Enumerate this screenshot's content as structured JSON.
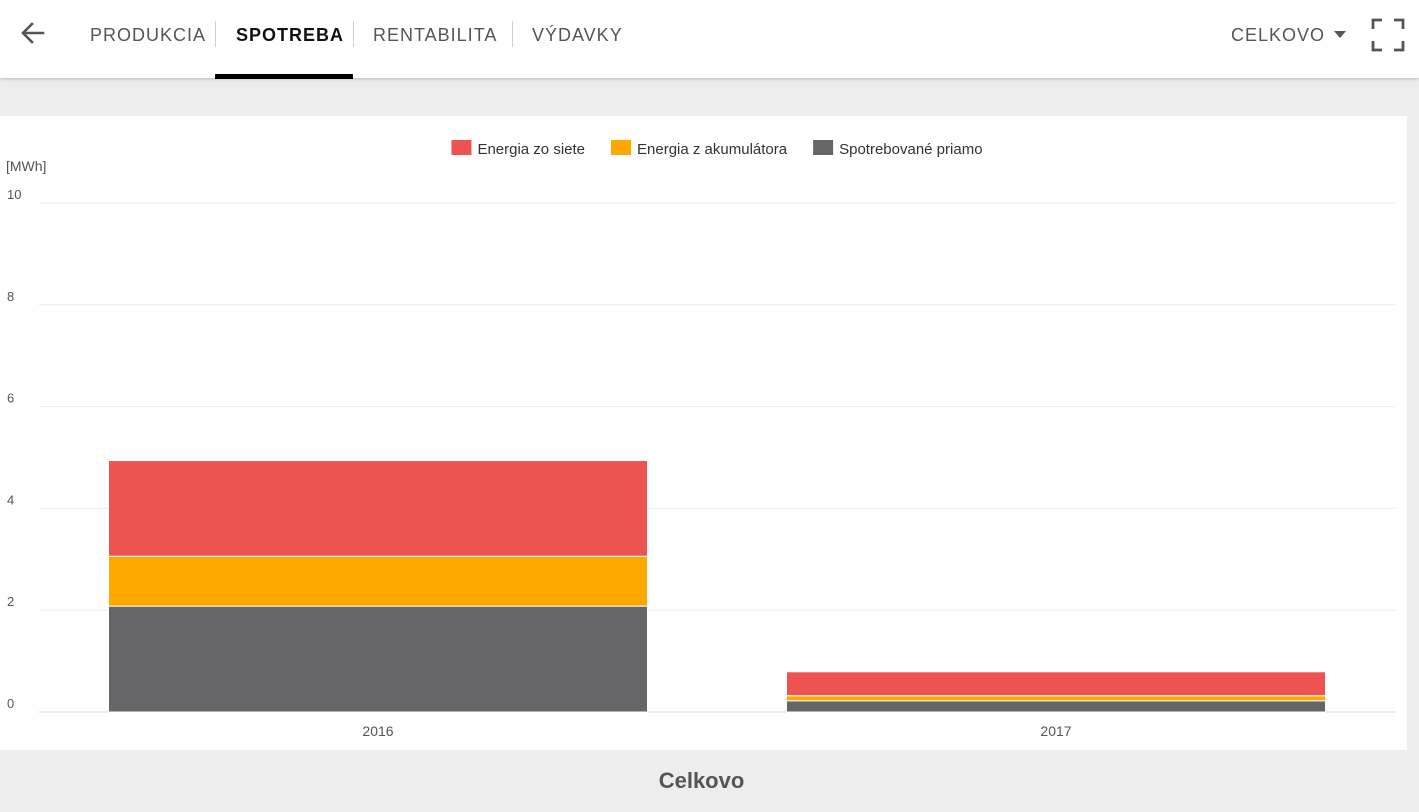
{
  "header": {
    "back_icon": "arrow-left-icon",
    "tabs": [
      {
        "label": "PRODUKCIA",
        "active": false
      },
      {
        "label": "SPOTREBA",
        "active": true
      },
      {
        "label": "RENTABILITA",
        "active": false
      },
      {
        "label": "VÝDAVKY",
        "active": false
      }
    ],
    "period_select": {
      "value": "CELKOVO",
      "icon": "caret-down-icon"
    },
    "fullscreen_icon": "fullscreen-icon"
  },
  "chart_data": {
    "type": "bar",
    "stacked": true,
    "categories": [
      "2016",
      "2017"
    ],
    "series": [
      {
        "name": "Spotrebované priamo",
        "color": "#666668",
        "values": [
          2.08,
          0.22
        ]
      },
      {
        "name": "Energia z akumulátora",
        "color": "#ffa800",
        "values": [
          0.98,
          0.1
        ]
      },
      {
        "name": "Energia zo siete",
        "color": "#ed5350",
        "values": [
          1.88,
          0.47
        ]
      }
    ],
    "ylabel": "[MWh]",
    "ylim": [
      0,
      10
    ],
    "yticks": [
      0,
      2,
      4,
      6,
      8,
      10
    ],
    "grid": true,
    "legend_position": "top-center",
    "legend": [
      {
        "name": "Energia zo siete",
        "color": "#ed5350"
      },
      {
        "name": "Energia z akumulátora",
        "color": "#ffa800"
      },
      {
        "name": "Spotrebované priamo",
        "color": "#666668"
      }
    ]
  },
  "footer": {
    "title": "Celkovo"
  }
}
